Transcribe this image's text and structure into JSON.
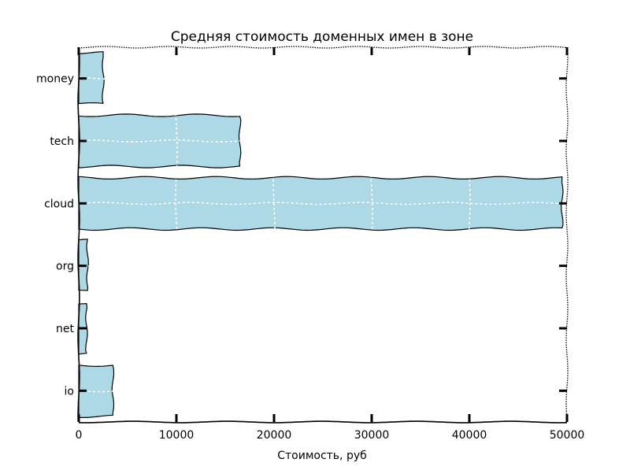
{
  "chart_data": {
    "type": "bar",
    "orientation": "horizontal",
    "title": "Средняя стоимость доменных имен в зоне",
    "xlabel": "Стоимость, руб",
    "ylabel": "",
    "categories": [
      "io",
      "net",
      "org",
      "cloud",
      "tech",
      "money"
    ],
    "values": [
      3500,
      800,
      900,
      49500,
      16500,
      2500
    ],
    "xlim": [
      0,
      50000
    ],
    "xticks": [
      0,
      10000,
      20000,
      30000,
      40000,
      50000
    ],
    "xtick_labels": [
      "0",
      "10000",
      "20000",
      "30000",
      "40000",
      "50000"
    ],
    "grid": "vertical dashed, visible over bars",
    "legend": "none",
    "style": "hand-drawn",
    "colors": {
      "bar_fill": "#add8e6",
      "bar_edge": "#000000",
      "grid": "#ffffff",
      "axis": "#000000"
    }
  }
}
